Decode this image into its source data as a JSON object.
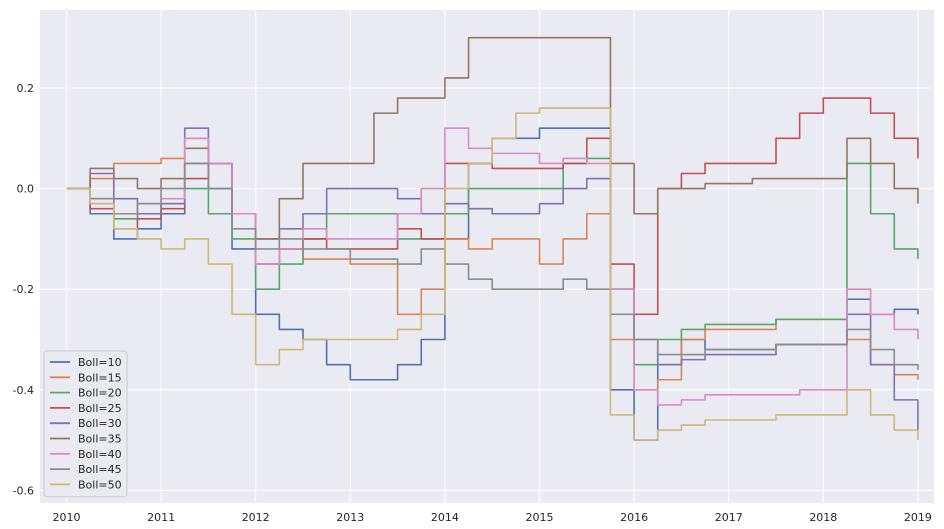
{
  "chart_data": {
    "type": "line",
    "title": "",
    "xlabel": "",
    "ylabel": "",
    "xlim": [
      2009.72,
      2019.17
    ],
    "ylim": [
      -0.625,
      0.355
    ],
    "grid": true,
    "legend_placement": "lower-left",
    "x_ticks": [
      2010,
      2011,
      2012,
      2013,
      2014,
      2015,
      2016,
      2017,
      2018,
      2019
    ],
    "x_tick_labels": [
      "2010",
      "2011",
      "2012",
      "2013",
      "2014",
      "2015",
      "2016",
      "2017",
      "2018",
      "2019"
    ],
    "y_ticks": [
      0.2,
      0.0,
      -0.2,
      -0.4,
      -0.6
    ],
    "y_tick_labels": [
      "0.2",
      "0.0",
      "-0.2",
      "-0.4",
      "-0.6"
    ],
    "x": [
      2010.0,
      2010.25,
      2010.5,
      2010.75,
      2011.0,
      2011.25,
      2011.5,
      2011.75,
      2012.0,
      2012.25,
      2012.5,
      2012.75,
      2013.0,
      2013.25,
      2013.5,
      2013.75,
      2014.0,
      2014.25,
      2014.5,
      2014.75,
      2015.0,
      2015.25,
      2015.5,
      2015.75,
      2016.0,
      2016.25,
      2016.5,
      2016.75,
      2017.0,
      2017.25,
      2017.5,
      2017.75,
      2018.0,
      2018.25,
      2018.5,
      2018.75,
      2019.0
    ],
    "series": [
      {
        "name": "Boll=10",
        "color": "#4c72b0",
        "values": [
          0.0,
          -0.05,
          -0.1,
          -0.08,
          -0.05,
          0.05,
          0.0,
          -0.12,
          -0.25,
          -0.28,
          -0.3,
          -0.35,
          -0.38,
          -0.38,
          -0.35,
          -0.3,
          -0.1,
          0.05,
          0.1,
          0.1,
          0.12,
          0.12,
          0.12,
          -0.4,
          -0.5,
          -0.35,
          -0.3,
          -0.32,
          -0.32,
          -0.32,
          -0.31,
          -0.31,
          -0.31,
          -0.22,
          -0.25,
          -0.24,
          -0.25
        ]
      },
      {
        "name": "Boll=15",
        "color": "#dd8452",
        "values": [
          0.0,
          0.02,
          0.05,
          0.05,
          0.06,
          0.1,
          0.05,
          -0.05,
          -0.15,
          -0.12,
          -0.14,
          -0.14,
          -0.15,
          -0.15,
          -0.25,
          -0.2,
          -0.1,
          -0.12,
          -0.1,
          -0.1,
          -0.15,
          -0.1,
          -0.05,
          -0.3,
          -0.4,
          -0.38,
          -0.3,
          -0.28,
          -0.28,
          -0.28,
          -0.26,
          -0.26,
          -0.26,
          -0.3,
          -0.35,
          -0.37,
          -0.38
        ]
      },
      {
        "name": "Boll=20",
        "color": "#55a868",
        "values": [
          0.0,
          -0.02,
          -0.06,
          -0.05,
          -0.03,
          0.0,
          -0.05,
          -0.1,
          -0.2,
          -0.15,
          -0.1,
          -0.05,
          -0.05,
          -0.05,
          -0.1,
          -0.1,
          -0.05,
          0.0,
          0.0,
          0.0,
          0.0,
          0.05,
          0.06,
          -0.2,
          -0.35,
          -0.3,
          -0.28,
          -0.27,
          -0.27,
          -0.27,
          -0.26,
          -0.26,
          -0.26,
          0.05,
          -0.05,
          -0.12,
          -0.14
        ]
      },
      {
        "name": "Boll=25",
        "color": "#c44e52",
        "values": [
          0.0,
          -0.04,
          -0.08,
          -0.06,
          -0.04,
          0.02,
          0.05,
          -0.05,
          -0.15,
          -0.12,
          -0.1,
          -0.12,
          -0.12,
          -0.12,
          -0.08,
          -0.1,
          0.05,
          0.05,
          0.04,
          0.04,
          0.04,
          0.05,
          0.1,
          -0.15,
          -0.25,
          0.0,
          0.03,
          0.05,
          0.05,
          0.05,
          0.1,
          0.15,
          0.18,
          0.18,
          0.15,
          0.1,
          0.06
        ]
      },
      {
        "name": "Boll=30",
        "color": "#8172b3",
        "values": [
          0.0,
          0.03,
          -0.02,
          -0.05,
          -0.03,
          0.12,
          0.05,
          -0.05,
          -0.1,
          -0.08,
          -0.05,
          0.0,
          0.0,
          0.0,
          -0.02,
          -0.05,
          -0.03,
          -0.04,
          -0.05,
          -0.05,
          -0.03,
          0.0,
          0.02,
          -0.2,
          -0.3,
          -0.35,
          -0.34,
          -0.33,
          -0.33,
          -0.33,
          -0.31,
          -0.31,
          -0.31,
          -0.25,
          -0.35,
          -0.42,
          -0.48
        ]
      },
      {
        "name": "Boll=35",
        "color": "#937860",
        "values": [
          0.0,
          0.04,
          0.02,
          0.0,
          0.02,
          0.08,
          0.05,
          -0.05,
          -0.1,
          -0.02,
          0.05,
          0.05,
          0.05,
          0.15,
          0.18,
          0.18,
          0.22,
          0.3,
          0.3,
          0.3,
          0.3,
          0.3,
          0.3,
          0.05,
          -0.05,
          0.0,
          0.0,
          0.01,
          0.01,
          0.02,
          0.02,
          0.02,
          0.02,
          0.1,
          0.05,
          0.0,
          -0.03
        ]
      },
      {
        "name": "Boll=40",
        "color": "#da8bc3",
        "values": [
          0.0,
          -0.03,
          -0.05,
          -0.03,
          -0.02,
          0.1,
          0.05,
          -0.05,
          -0.15,
          -0.12,
          -0.08,
          -0.1,
          -0.1,
          -0.1,
          -0.05,
          0.0,
          0.12,
          0.08,
          0.07,
          0.07,
          0.05,
          0.06,
          0.05,
          -0.2,
          -0.4,
          -0.43,
          -0.42,
          -0.41,
          -0.41,
          -0.41,
          -0.41,
          -0.4,
          -0.4,
          -0.2,
          -0.25,
          -0.28,
          -0.3
        ]
      },
      {
        "name": "Boll=45",
        "color": "#8c8c8c",
        "values": [
          0.0,
          -0.02,
          -0.05,
          -0.03,
          0.0,
          0.05,
          0.0,
          -0.08,
          -0.12,
          -0.1,
          -0.12,
          -0.12,
          -0.14,
          -0.14,
          -0.15,
          -0.12,
          -0.15,
          -0.18,
          -0.2,
          -0.2,
          -0.2,
          -0.18,
          -0.2,
          -0.25,
          -0.3,
          -0.33,
          -0.33,
          -0.32,
          -0.32,
          -0.32,
          -0.31,
          -0.31,
          -0.31,
          -0.28,
          -0.32,
          -0.35,
          -0.36
        ]
      },
      {
        "name": "Boll=50",
        "color": "#ccb974",
        "values": [
          0.0,
          -0.03,
          -0.08,
          -0.1,
          -0.12,
          -0.1,
          -0.15,
          -0.25,
          -0.35,
          -0.32,
          -0.3,
          -0.3,
          -0.3,
          -0.3,
          -0.28,
          -0.25,
          0.0,
          0.05,
          0.1,
          0.15,
          0.16,
          0.16,
          0.16,
          -0.45,
          -0.5,
          -0.48,
          -0.47,
          -0.46,
          -0.46,
          -0.46,
          -0.45,
          -0.45,
          -0.45,
          -0.4,
          -0.45,
          -0.48,
          -0.5
        ]
      }
    ]
  }
}
